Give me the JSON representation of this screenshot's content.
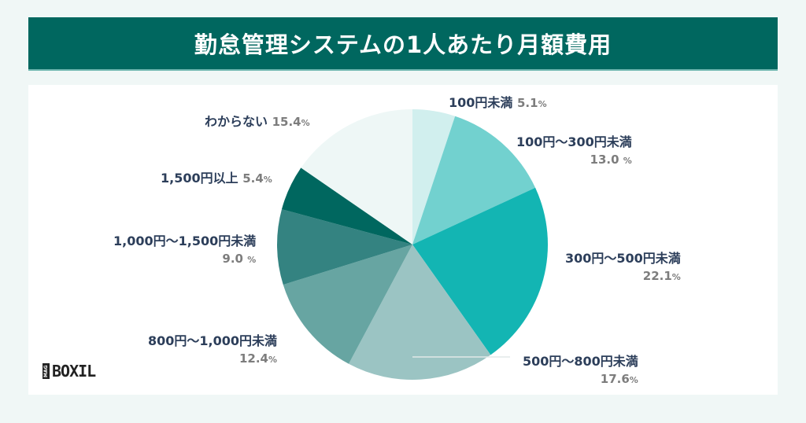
{
  "title": "勤怠管理システムの1人あたり月額費用",
  "logo": {
    "mag": "MAG",
    "name": "BOXIL"
  },
  "chart_data": {
    "type": "pie",
    "title": "勤怠管理システムの1人あたり月額費用",
    "categories": [
      "100円未満",
      "100円〜300円未満",
      "300円〜500円未満",
      "500円〜800円未満",
      "800円〜1,000円未満",
      "1,000円〜1,500円未満",
      "1,500円以上",
      "わからない"
    ],
    "values": [
      5.1,
      13.0,
      22.1,
      17.6,
      12.4,
      9.0,
      5.4,
      15.4
    ],
    "colors": [
      "#d1efee",
      "#72d1cf",
      "#13b5b3",
      "#9bc4c3",
      "#67a5a2",
      "#348381",
      "#00675f",
      "#eef7f6"
    ],
    "unit": "%",
    "start_angle": "12 o'clock, clockwise",
    "legend_position": "labels beside slices"
  },
  "labels": [
    {
      "name": "100円未満",
      "pct": "5.1",
      "unit": "%"
    },
    {
      "name": "100円〜300円未満",
      "pct": "13.0",
      "unit": "%"
    },
    {
      "name": "300円〜500円未満",
      "pct": "22.1",
      "unit": "%"
    },
    {
      "name": "500円〜800円未満",
      "pct": "17.6",
      "unit": "%"
    },
    {
      "name": "800円〜1,000円未満",
      "pct": "12.4",
      "unit": "%"
    },
    {
      "name": "1,000円〜1,500円未満",
      "pct": "9.0",
      "unit": "%"
    },
    {
      "name": "1,500円以上",
      "pct": "5.4",
      "unit": "%"
    },
    {
      "name": "わからない",
      "pct": "15.4",
      "unit": "%"
    }
  ]
}
